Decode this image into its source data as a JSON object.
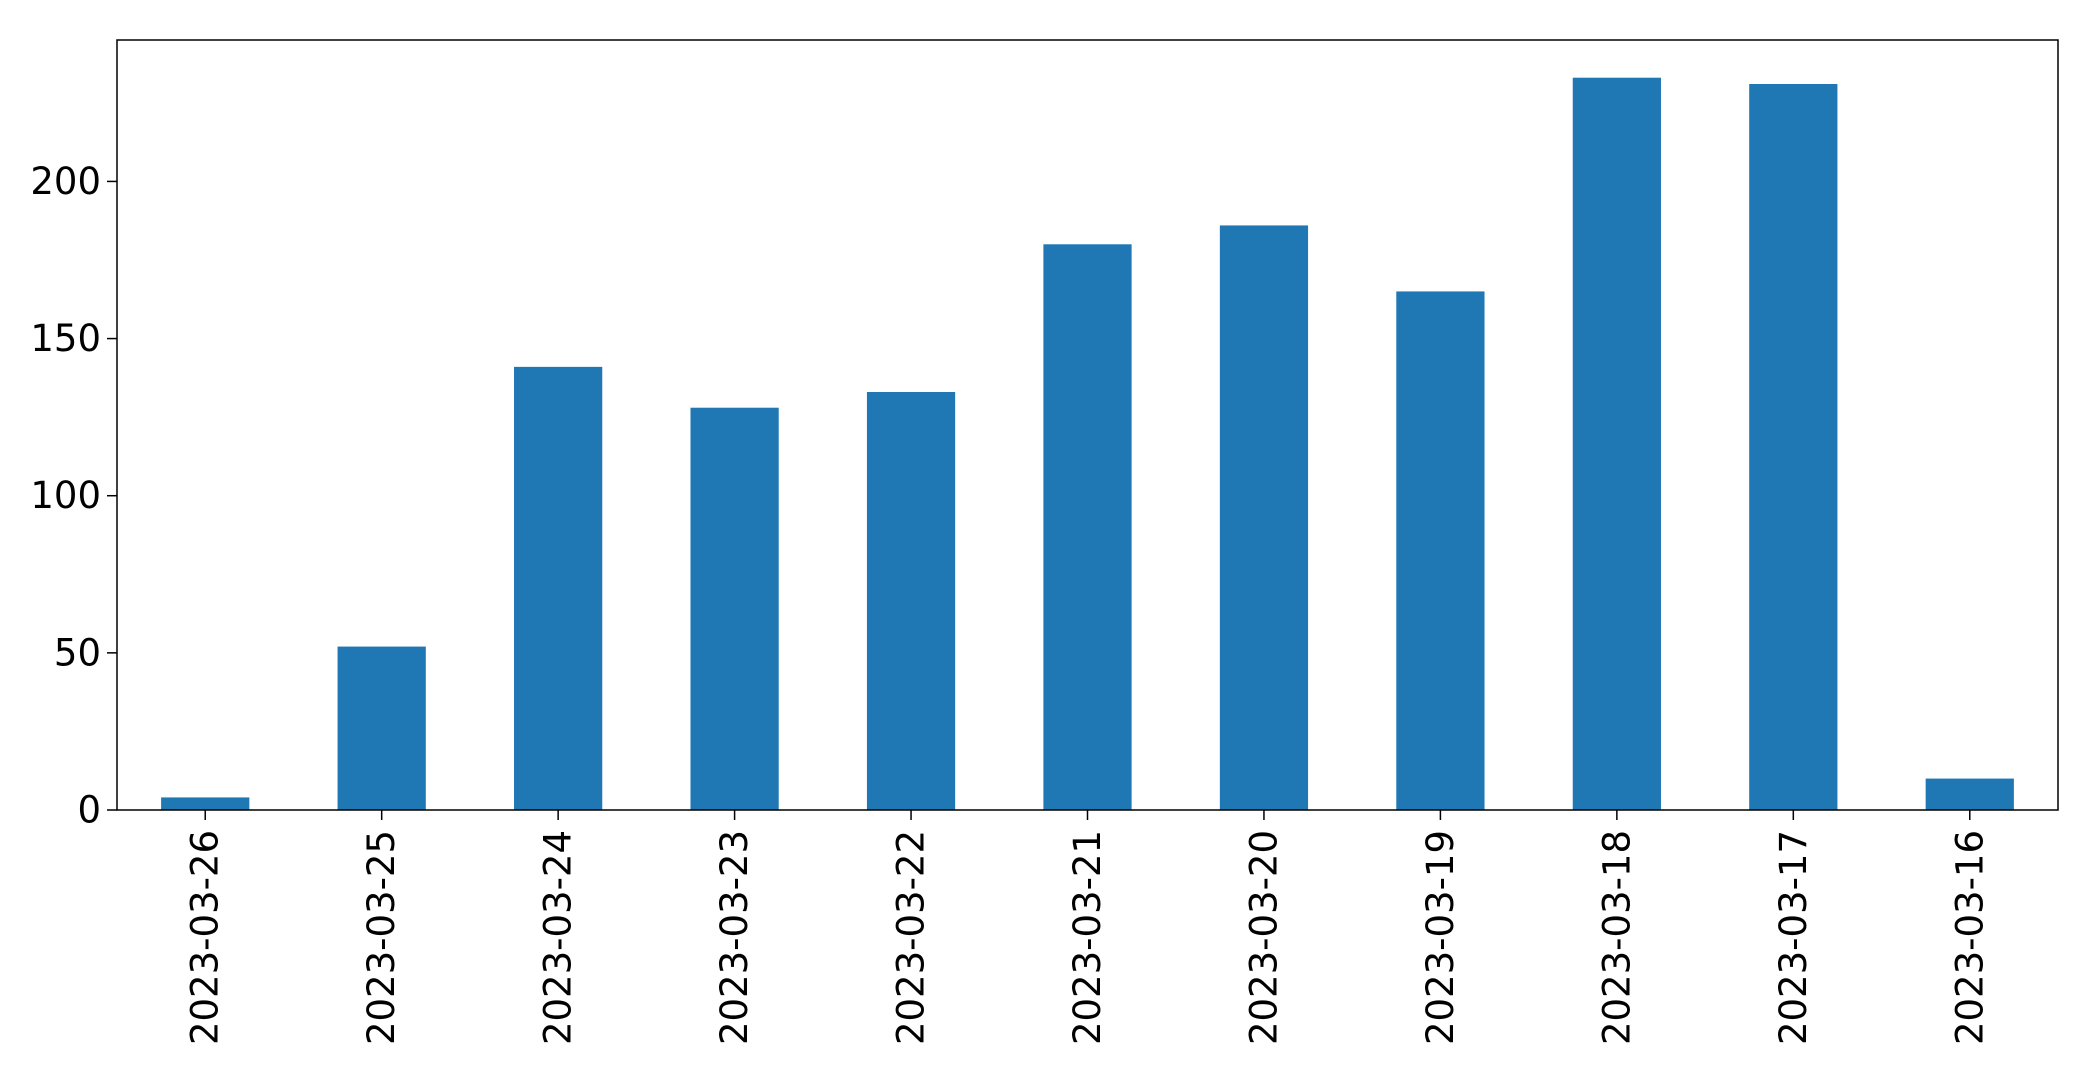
{
  "chart_data": {
    "type": "bar",
    "categories": [
      "2023-03-26",
      "2023-03-25",
      "2023-03-24",
      "2023-03-23",
      "2023-03-22",
      "2023-03-21",
      "2023-03-20",
      "2023-03-19",
      "2023-03-18",
      "2023-03-17",
      "2023-03-16"
    ],
    "values": [
      4,
      52,
      141,
      128,
      133,
      180,
      186,
      165,
      233,
      231,
      10
    ],
    "yticks": [
      0,
      50,
      100,
      150,
      200
    ],
    "ylim": [
      0,
      245
    ],
    "title": "",
    "xlabel": "",
    "ylabel": "",
    "grid": false,
    "bar_color": "#1f77b4"
  }
}
